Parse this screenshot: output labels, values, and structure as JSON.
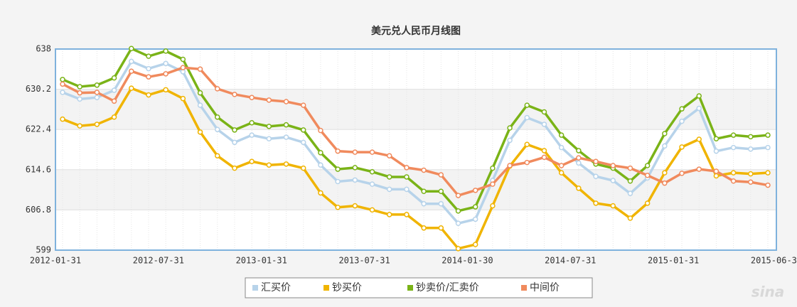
{
  "chart_data": {
    "type": "line",
    "title": "美元兑人民币月线图",
    "xticks": [
      "2012-01-31",
      "2012-07-31",
      "2013-01-31",
      "2013-07-31",
      "2014-01-30",
      "2014-07-31",
      "2015-01-31",
      "2015-06-30"
    ],
    "ylim": [
      599,
      638
    ],
    "yticks": [
      599,
      606.8,
      614.6,
      622.4,
      630.2,
      638
    ],
    "grid": true,
    "legend": "bottom",
    "watermark": "sina",
    "series": [
      {
        "name": "汇买价",
        "color": "#b7d3ea",
        "values": [
          629.6,
          628.3,
          628.6,
          630,
          635.6,
          634.2,
          635.2,
          633.6,
          627.1,
          622.4,
          619.9,
          621.3,
          620.6,
          620.9,
          619.9,
          615.5,
          612.3,
          612.6,
          611.8,
          610.8,
          610.8,
          608,
          608,
          604.2,
          605,
          612.5,
          620.3,
          624.7,
          623.4,
          618.9,
          615.9,
          613.3,
          612.5,
          610,
          613,
          619.2,
          624,
          626.5,
          618.2,
          618.9,
          618.6,
          618.9
        ]
      },
      {
        "name": "钞买价",
        "color": "#f0b400",
        "values": [
          624.4,
          623.1,
          623.4,
          624.8,
          630.4,
          629.1,
          630.1,
          628.4,
          621.9,
          617.3,
          614.9,
          616.2,
          615.5,
          615.7,
          614.9,
          610.1,
          607.3,
          607.6,
          606.8,
          605.9,
          605.9,
          603.3,
          603.3,
          599.3,
          600.1,
          607.6,
          615.3,
          619.5,
          618.3,
          614,
          611,
          608.1,
          607.6,
          605.2,
          608.1,
          614,
          619,
          620.5,
          613.4,
          614,
          613.8,
          614
        ]
      },
      {
        "name": "钞卖价/汇卖价",
        "color": "#7ab317",
        "values": [
          632.1,
          630.7,
          631,
          632.4,
          638.1,
          636.6,
          637.6,
          636,
          629.5,
          624.8,
          622.3,
          623.7,
          623,
          623.3,
          622.3,
          617.9,
          614.7,
          615,
          614.2,
          613.2,
          613.2,
          610.4,
          610.4,
          606.6,
          607.4,
          614.9,
          622.7,
          627.1,
          625.8,
          621.3,
          618.3,
          615.7,
          614.9,
          612.4,
          615.4,
          621.6,
          626.4,
          628.9,
          620.6,
          621.3,
          621,
          621.3
        ]
      },
      {
        "name": "中间价",
        "color": "#f08a5d",
        "values": [
          631.2,
          629.5,
          629.6,
          627.9,
          633.7,
          632.6,
          633.2,
          634.4,
          634.1,
          630.3,
          629.2,
          628.6,
          628.1,
          627.8,
          627.1,
          622.2,
          618.2,
          618,
          618,
          617.3,
          615,
          614.5,
          613.6,
          609.6,
          610.6,
          611.8,
          615.4,
          616,
          617,
          615.4,
          616.9,
          616.2,
          615.4,
          614.9,
          613.5,
          612,
          613.9,
          614.7,
          614.3,
          612.4,
          612.2,
          611.6
        ]
      }
    ]
  }
}
